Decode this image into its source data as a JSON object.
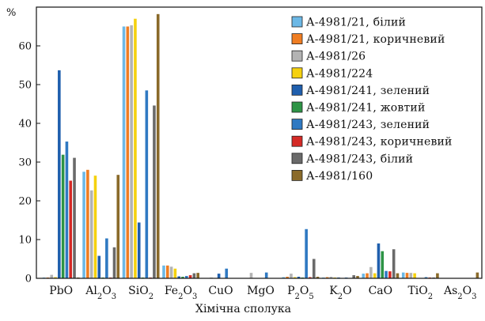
{
  "chart_data": {
    "type": "bar",
    "y_unit_label": "%",
    "xlabel": "Хімічна сполука",
    "ylabel": "",
    "ylim": [
      0,
      70
    ],
    "yticks": [
      0,
      10,
      20,
      30,
      40,
      50,
      60
    ],
    "grid": false,
    "legend_position": "top-right",
    "categories": [
      {
        "id": "PbO",
        "parts": [
          {
            "t": "PbO",
            "sub": false
          }
        ]
      },
      {
        "id": "Al2O3",
        "parts": [
          {
            "t": "Al",
            "sub": false
          },
          {
            "t": "2",
            "sub": true
          },
          {
            "t": "O",
            "sub": false
          },
          {
            "t": "3",
            "sub": true
          }
        ]
      },
      {
        "id": "SiO2",
        "parts": [
          {
            "t": "SiO",
            "sub": false
          },
          {
            "t": "2",
            "sub": true
          }
        ]
      },
      {
        "id": "Fe2O3",
        "parts": [
          {
            "t": "Fe",
            "sub": false
          },
          {
            "t": "2",
            "sub": true
          },
          {
            "t": "O",
            "sub": false
          },
          {
            "t": "3",
            "sub": true
          }
        ]
      },
      {
        "id": "CuO",
        "parts": [
          {
            "t": "CuO",
            "sub": false
          }
        ]
      },
      {
        "id": "MgO",
        "parts": [
          {
            "t": "MgO",
            "sub": false
          }
        ]
      },
      {
        "id": "P2O5",
        "parts": [
          {
            "t": "P",
            "sub": false
          },
          {
            "t": "2",
            "sub": true
          },
          {
            "t": "O",
            "sub": false
          },
          {
            "t": "5",
            "sub": true
          }
        ]
      },
      {
        "id": "K2O",
        "parts": [
          {
            "t": "K",
            "sub": false
          },
          {
            "t": "2",
            "sub": true
          },
          {
            "t": "O",
            "sub": false
          }
        ]
      },
      {
        "id": "CaO",
        "parts": [
          {
            "t": "CaO",
            "sub": false
          }
        ]
      },
      {
        "id": "TiO2",
        "parts": [
          {
            "t": "TiO",
            "sub": false
          },
          {
            "t": "2",
            "sub": true
          }
        ]
      },
      {
        "id": "As2O3",
        "parts": [
          {
            "t": "As",
            "sub": false
          },
          {
            "t": "2",
            "sub": true
          },
          {
            "t": "O",
            "sub": false
          },
          {
            "t": "3",
            "sub": true
          }
        ]
      }
    ],
    "series": [
      {
        "name": "А-4981/21, білий",
        "color": "#6cb8e6",
        "values": [
          0.2,
          27.5,
          65.0,
          3.3,
          0.1,
          0.1,
          0.3,
          0.2,
          1.2,
          1.5,
          0.1
        ]
      },
      {
        "name": "А-4981/21, коричневий",
        "color": "#ef7d22",
        "values": [
          0.2,
          28.0,
          65.0,
          3.3,
          0.1,
          0.1,
          0.4,
          0.3,
          1.3,
          1.4,
          0.1
        ]
      },
      {
        "name": "А-4981/26",
        "color": "#b3b3b3",
        "values": [
          0.9,
          22.7,
          65.3,
          3.0,
          0.2,
          1.4,
          1.2,
          0.4,
          2.9,
          1.4,
          0.1
        ]
      },
      {
        "name": "А-4981/224",
        "color": "#f5d10e",
        "values": [
          0.3,
          26.5,
          67.0,
          2.5,
          0.1,
          0.1,
          0.3,
          0.2,
          1.3,
          1.3,
          0.1
        ]
      },
      {
        "name": "А-4981/241, зелений",
        "color": "#1f5fad",
        "values": [
          53.7,
          5.8,
          14.4,
          0.5,
          1.2,
          0.1,
          0.4,
          0.2,
          9.0,
          0.1,
          0.1
        ]
      },
      {
        "name": "А-4981/241, жовтий",
        "color": "#2e9446",
        "values": [
          31.9,
          0.2,
          0.2,
          0.4,
          0.1,
          0.1,
          0.2,
          0.1,
          7.0,
          0.1,
          0.1
        ]
      },
      {
        "name": "А-4981/243, зелений",
        "color": "#2f79c2",
        "values": [
          35.3,
          10.3,
          48.5,
          0.6,
          2.5,
          1.5,
          12.7,
          0.2,
          1.9,
          0.3,
          0.1
        ]
      },
      {
        "name": "А-4981/243, коричневий",
        "color": "#d52a26",
        "values": [
          25.2,
          0.2,
          0.2,
          0.8,
          0.1,
          0.1,
          0.3,
          0.1,
          1.8,
          0.2,
          0.1
        ]
      },
      {
        "name": "А-4981/243, білий",
        "color": "#6a6a6a",
        "values": [
          31.1,
          8.0,
          44.6,
          1.3,
          0.1,
          0.1,
          5.0,
          0.8,
          7.5,
          0.2,
          0.1
        ]
      },
      {
        "name": "А-4981/160",
        "color": "#8a6a2a",
        "values": [
          0.2,
          26.7,
          68.2,
          1.4,
          0.1,
          0.1,
          0.4,
          0.6,
          1.3,
          1.3,
          1.5
        ]
      }
    ]
  }
}
